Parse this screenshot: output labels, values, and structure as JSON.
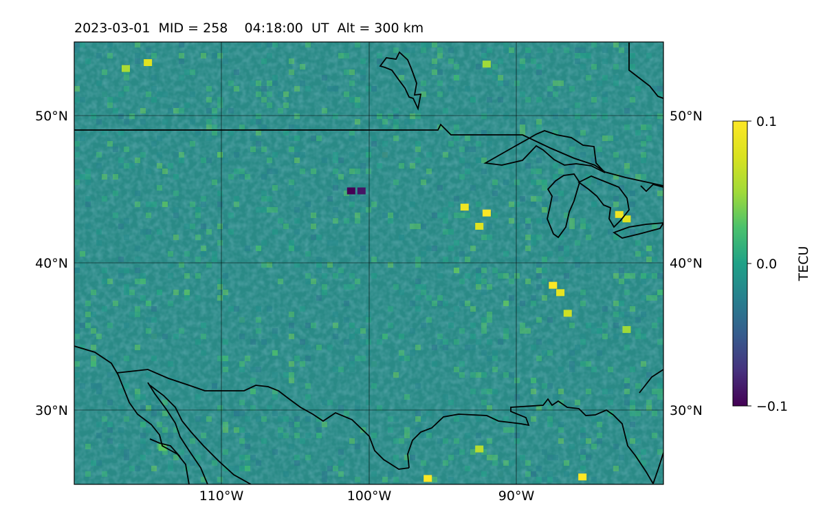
{
  "title": "2023-03-01  MID = 258    04:18:00  UT  Alt = 300 km",
  "map": {
    "lon_range": [
      -120,
      -80
    ],
    "lat_range": [
      25,
      55
    ],
    "lon_ticks": [
      {
        "value": -110,
        "label": "110°W"
      },
      {
        "value": -100,
        "label": "100°W"
      },
      {
        "value": -90,
        "label": "90°W"
      }
    ],
    "lat_ticks": [
      {
        "value": 50,
        "label": "50°N"
      },
      {
        "value": 40,
        "label": "40°N"
      },
      {
        "value": 30,
        "label": "30°N"
      }
    ],
    "colormap": "viridis",
    "background_color": "#2a8a86"
  },
  "colorbar": {
    "label": "TECU",
    "min": -0.1,
    "max": 0.1,
    "ticks": [
      {
        "value": 0.1,
        "label": "0.1"
      },
      {
        "value": 0.0,
        "label": "0.0"
      },
      {
        "value": -0.1,
        "label": "−0.1"
      }
    ]
  },
  "hotspots": [
    {
      "lon": -115,
      "lat": 53.6,
      "value": 0.08
    },
    {
      "lon": -116.5,
      "lat": 53.2,
      "value": 0.055
    },
    {
      "lon": -92,
      "lat": 53.5,
      "value": 0.05
    },
    {
      "lon": -101.2,
      "lat": 44.9,
      "value": -0.1
    },
    {
      "lon": -100.5,
      "lat": 44.9,
      "value": -0.09
    },
    {
      "lon": -92,
      "lat": 43.4,
      "value": 0.1
    },
    {
      "lon": -93.5,
      "lat": 43.8,
      "value": 0.09
    },
    {
      "lon": -92.5,
      "lat": 42.5,
      "value": 0.08
    },
    {
      "lon": -87.5,
      "lat": 38.5,
      "value": 0.1
    },
    {
      "lon": -87,
      "lat": 38.0,
      "value": 0.085
    },
    {
      "lon": -86.5,
      "lat": 36.6,
      "value": 0.07
    },
    {
      "lon": -83,
      "lat": 43.3,
      "value": 0.09
    },
    {
      "lon": -82.5,
      "lat": 43.0,
      "value": 0.08
    },
    {
      "lon": -92.5,
      "lat": 27.4,
      "value": 0.06
    },
    {
      "lon": -96,
      "lat": 25.4,
      "value": 0.1
    },
    {
      "lon": -85.5,
      "lat": 25.5,
      "value": 0.1
    },
    {
      "lon": -82.5,
      "lat": 35.5,
      "value": 0.05
    },
    {
      "lon": -114,
      "lat": 27.5,
      "value": 0.03
    }
  ]
}
